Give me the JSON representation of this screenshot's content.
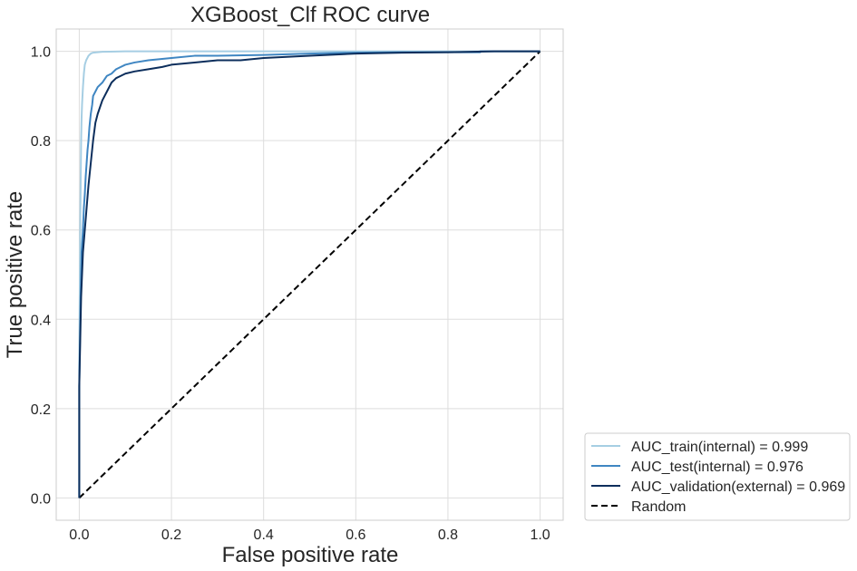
{
  "chart_data": {
    "type": "line",
    "title": "XGBoost_Clf ROC curve",
    "xlabel": "False positive rate",
    "ylabel": "True positive rate",
    "xlim": [
      -0.05,
      1.05
    ],
    "ylim": [
      -0.05,
      1.05
    ],
    "xticks": [
      0.0,
      0.2,
      0.4,
      0.6,
      0.8,
      1.0
    ],
    "yticks": [
      0.0,
      0.2,
      0.4,
      0.6,
      0.8,
      1.0
    ],
    "xtick_labels": [
      "0.0",
      "0.2",
      "0.4",
      "0.6",
      "0.8",
      "1.0"
    ],
    "ytick_labels": [
      "0.0",
      "0.2",
      "0.4",
      "0.6",
      "0.8",
      "1.0"
    ],
    "grid": true,
    "legend_position": "lower-right-outside",
    "series": [
      {
        "name": "AUC_train(internal) = 0.999",
        "color": "#a6cee3",
        "dashed": false,
        "x": [
          0.0,
          0.0,
          0.002,
          0.003,
          0.004,
          0.005,
          0.006,
          0.008,
          0.01,
          0.012,
          0.015,
          0.02,
          0.025,
          0.03,
          0.04,
          0.05,
          0.1,
          0.3,
          0.6,
          1.0
        ],
        "y": [
          0.0,
          0.3,
          0.6,
          0.7,
          0.8,
          0.85,
          0.88,
          0.92,
          0.95,
          0.97,
          0.98,
          0.99,
          0.995,
          0.997,
          0.998,
          0.999,
          1.0,
          1.0,
          1.0,
          1.0
        ]
      },
      {
        "name": "AUC_test(internal) = 0.976",
        "color": "#3f86c2",
        "dashed": false,
        "x": [
          0.0,
          0.0,
          0.003,
          0.005,
          0.008,
          0.01,
          0.012,
          0.014,
          0.016,
          0.018,
          0.02,
          0.022,
          0.025,
          0.028,
          0.03,
          0.035,
          0.04,
          0.05,
          0.06,
          0.07,
          0.08,
          0.09,
          0.1,
          0.12,
          0.15,
          0.2,
          0.25,
          0.3,
          0.4,
          0.5,
          0.6,
          0.7,
          0.75,
          0.87,
          0.87,
          1.0
        ],
        "y": [
          0.0,
          0.25,
          0.45,
          0.55,
          0.6,
          0.65,
          0.68,
          0.72,
          0.75,
          0.78,
          0.8,
          0.83,
          0.86,
          0.88,
          0.9,
          0.91,
          0.92,
          0.93,
          0.945,
          0.95,
          0.96,
          0.965,
          0.97,
          0.975,
          0.98,
          0.985,
          0.99,
          0.99,
          0.992,
          0.995,
          0.997,
          0.998,
          0.998,
          0.998,
          1.0,
          1.0
        ]
      },
      {
        "name": "AUC_validation(external) = 0.969",
        "color": "#0c2e5c",
        "dashed": false,
        "x": [
          0.0,
          0.0,
          0.004,
          0.008,
          0.012,
          0.016,
          0.02,
          0.025,
          0.03,
          0.035,
          0.04,
          0.05,
          0.06,
          0.07,
          0.08,
          0.09,
          0.1,
          0.12,
          0.15,
          0.18,
          0.2,
          0.25,
          0.3,
          0.35,
          0.4,
          0.5,
          0.6,
          0.7,
          0.8,
          0.9,
          1.0
        ],
        "y": [
          0.0,
          0.25,
          0.45,
          0.55,
          0.6,
          0.65,
          0.7,
          0.75,
          0.8,
          0.84,
          0.86,
          0.89,
          0.91,
          0.93,
          0.94,
          0.945,
          0.95,
          0.955,
          0.96,
          0.965,
          0.97,
          0.975,
          0.98,
          0.98,
          0.985,
          0.99,
          0.995,
          0.997,
          0.998,
          1.0,
          1.0
        ]
      },
      {
        "name": "Random",
        "color": "#000000",
        "dashed": true,
        "x": [
          0.0,
          1.0
        ],
        "y": [
          0.0,
          1.0
        ]
      }
    ]
  }
}
